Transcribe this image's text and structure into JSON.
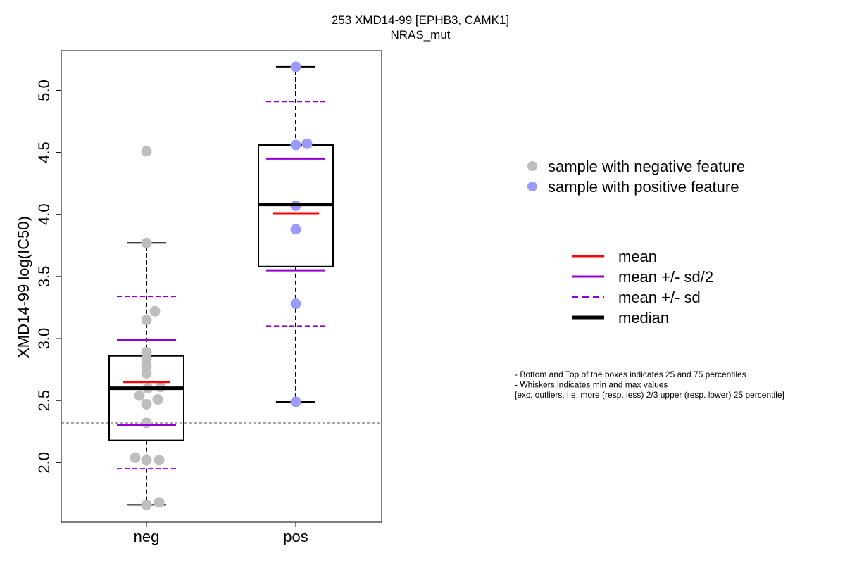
{
  "chart_data": {
    "type": "boxplot",
    "title": "253 XMD14-99 [EPHB3, CAMK1]",
    "subtitle": "NRAS_mut",
    "ylabel": "XMD14-99 log(IC50)",
    "xlabel": "",
    "ylim": [
      1.52,
      5.32
    ],
    "yticks": [
      "2.0",
      "2.5",
      "3.0",
      "3.5",
      "4.0",
      "4.5",
      "5.0"
    ],
    "threshold_line": 2.32,
    "categories": [
      "neg",
      "pos"
    ],
    "groups": [
      {
        "category": "neg",
        "point_color": "#bebebe",
        "points": [
          4.51,
          3.77,
          3.22,
          3.15,
          2.89,
          2.84,
          2.78,
          2.72,
          2.61,
          2.6,
          2.54,
          2.51,
          2.47,
          2.32,
          2.04,
          2.02,
          2.02,
          1.68,
          1.66
        ],
        "box": {
          "q1": 2.18,
          "median": 2.6,
          "q3": 2.86,
          "whisker_low": 1.66,
          "whisker_high": 3.77
        },
        "mean": 2.65,
        "mean_minus_half_sd": 2.3,
        "mean_plus_half_sd": 2.99,
        "mean_minus_sd": 1.95,
        "mean_plus_sd": 3.34
      },
      {
        "category": "pos",
        "point_color": "#9a9aff",
        "points": [
          5.19,
          4.57,
          4.56,
          4.07,
          3.88,
          3.28,
          2.49
        ],
        "box": {
          "q1": 3.58,
          "median": 4.08,
          "q3": 4.56,
          "whisker_low": 2.49,
          "whisker_high": 5.19
        },
        "mean": 4.01,
        "mean_minus_half_sd": 3.55,
        "mean_plus_half_sd": 4.45,
        "mean_minus_sd": 3.1,
        "mean_plus_sd": 4.91
      }
    ],
    "legend_points": [
      {
        "label": "sample with negative feature",
        "color": "#bebebe"
      },
      {
        "label": "sample with positive feature",
        "color": "#9a9aff"
      }
    ],
    "legend_lines": [
      {
        "label": "mean",
        "color": "#ff0000",
        "style": "solid"
      },
      {
        "label": "mean +/- sd/2",
        "color": "#9400d3",
        "style": "solid"
      },
      {
        "label": "mean +/- sd",
        "color": "#9400d3",
        "style": "dashed"
      },
      {
        "label": "median",
        "color": "#000000",
        "style": "thick"
      }
    ],
    "notes": [
      "- Bottom and Top of the boxes indicates 25 and 75 percentiles",
      "- Whiskers indicates min and max values",
      "[exc. outliers, i.e. more (resp. less) 2/3 upper (resp. lower) 25 percentile]"
    ]
  }
}
